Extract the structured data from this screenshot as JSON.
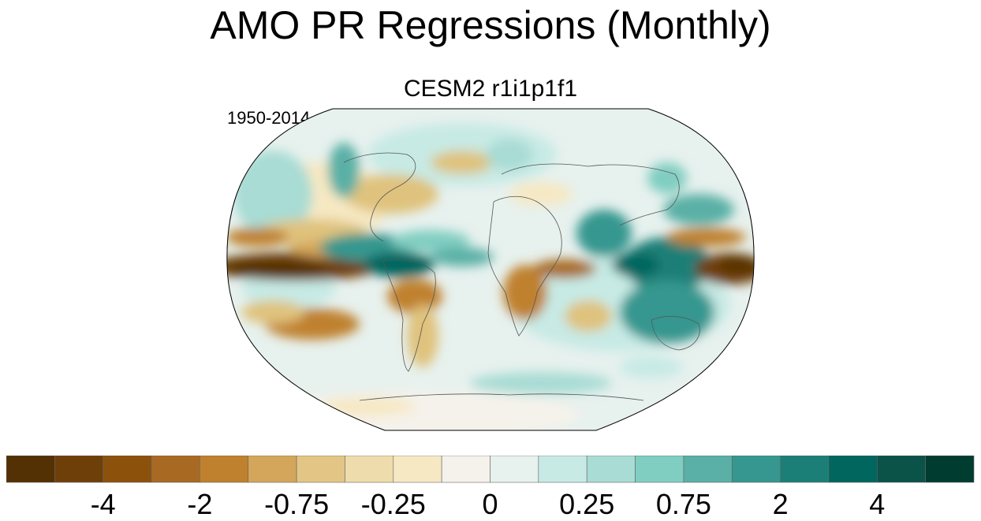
{
  "title": "AMO PR Regressions (Monthly)",
  "subtitle": "CESM2 r1i1p1f1",
  "period": "1950-2014",
  "map": {
    "projection": "Robinson",
    "outline_color": "#000000",
    "coastline_color": "#555555"
  },
  "colorbar": {
    "colors": [
      "#543005",
      "#6f3f0a",
      "#8c510a",
      "#a86a23",
      "#bf812d",
      "#d3a65b",
      "#e3c685",
      "#efdcac",
      "#f6e8c3",
      "#f5f2eb",
      "#e7f1ee",
      "#c7eae5",
      "#a8dcd4",
      "#80cdc1",
      "#5ab0a6",
      "#35978f",
      "#1b7f77",
      "#01665e",
      "#0b5249",
      "#003c30"
    ],
    "tick_labels": [
      "-4",
      "-2",
      "-0.75",
      "-0.25",
      "0",
      "0.25",
      "0.75",
      "2",
      "4"
    ],
    "tick_after_box": [
      2,
      4,
      6,
      8,
      10,
      12,
      14,
      16,
      18
    ]
  }
}
